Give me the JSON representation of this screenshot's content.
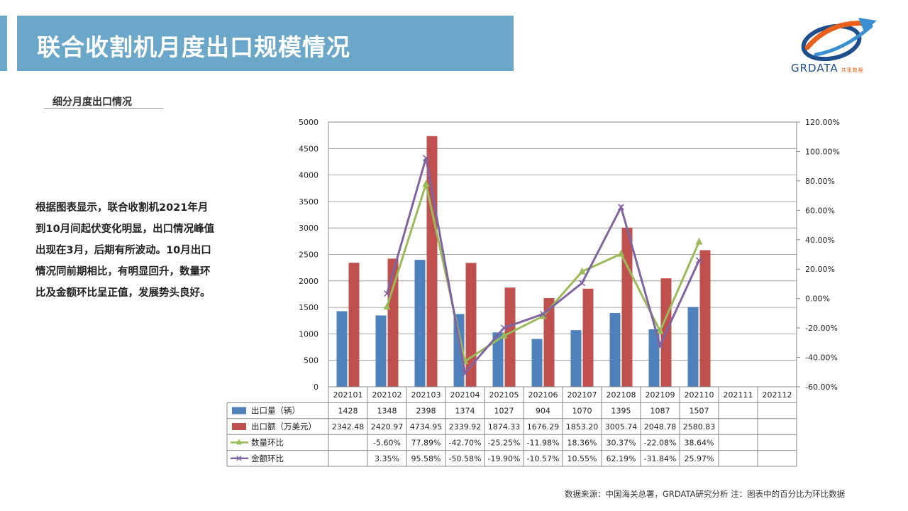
{
  "header": {
    "title": "联合收割机月度出口规模情况"
  },
  "logo": {
    "name": "GRDATA",
    "tagline": "共策数据"
  },
  "section": {
    "subtitle": "细分月度出口情况"
  },
  "description": "根据图表显示，联合收割机2021年月\n到10月间起伏变化明显，出口情况峰值\n出现在3月，后期有所波动。10月出口\n情况同前期相比，有明显回升，数量环\n比及金额环比呈正值，发展势头良好。",
  "footer": {
    "source": "数据来源：中国海关总署，GRDATA研究分析  注：图表中的百分比为环比数据"
  },
  "colors": {
    "accent": "#6ba7c9",
    "bar_qty": "#4f81bd",
    "bar_amt": "#c0504d",
    "line_qty": "#9bbb59",
    "line_amt": "#8064a2"
  },
  "chart_data": {
    "type": "bar",
    "categories": [
      "202101",
      "202102",
      "202103",
      "202104",
      "202105",
      "202106",
      "202107",
      "202108",
      "202109",
      "202110",
      "202111",
      "202112"
    ],
    "ylim_left": [
      0,
      5000
    ],
    "left_ticks": [
      "0",
      "500",
      "1000",
      "1500",
      "2000",
      "2500",
      "3000",
      "3500",
      "4000",
      "4500",
      "5000"
    ],
    "ylim_right": [
      -60,
      120
    ],
    "right_ticks": [
      "-60.00%",
      "-40.00%",
      "-20.00%",
      "0.00%",
      "20.00%",
      "40.00%",
      "60.00%",
      "80.00%",
      "100.00%",
      "120.00%"
    ],
    "grid": true,
    "series": [
      {
        "name": "出口量（辆）",
        "kind": "bar",
        "axis": "left",
        "values": [
          1428,
          1348,
          2398,
          1374,
          1027,
          904,
          1070,
          1395,
          1087,
          1507,
          null,
          null
        ],
        "labels": [
          "1428",
          "1348",
          "2398",
          "1374",
          "1027",
          "904",
          "1070",
          "1395",
          "1087",
          "1507",
          "",
          ""
        ]
      },
      {
        "name": "出口额（万美元）",
        "kind": "bar",
        "axis": "left",
        "values": [
          2342.48,
          2420.97,
          4734.95,
          2339.92,
          1874.33,
          1676.29,
          1853.2,
          3005.74,
          2048.78,
          2580.83,
          null,
          null
        ],
        "labels": [
          "2342.48",
          "2420.97",
          "4734.95",
          "2339.92",
          "1874.33",
          "1676.29",
          "1853.20",
          "3005.74",
          "2048.78",
          "2580.83",
          "",
          ""
        ]
      },
      {
        "name": "数量环比",
        "kind": "line",
        "axis": "right",
        "values": [
          null,
          -5.6,
          77.89,
          -42.7,
          -25.25,
          -11.98,
          18.36,
          30.37,
          -22.08,
          38.64,
          null,
          null
        ],
        "labels": [
          "",
          "-5.60%",
          "77.89%",
          "-42.70%",
          "-25.25%",
          "-11.98%",
          "18.36%",
          "30.37%",
          "-22.08%",
          "38.64%",
          "",
          ""
        ]
      },
      {
        "name": "金额环比",
        "kind": "line",
        "axis": "right",
        "values": [
          null,
          3.35,
          95.58,
          -50.58,
          -19.9,
          -10.57,
          10.55,
          62.19,
          -31.84,
          25.97,
          null,
          null
        ],
        "labels": [
          "",
          "3.35%",
          "95.58%",
          "-50.58%",
          "-19.90%",
          "-10.57%",
          "10.55%",
          "62.19%",
          "-31.84%",
          "25.97%",
          "",
          ""
        ]
      }
    ]
  }
}
